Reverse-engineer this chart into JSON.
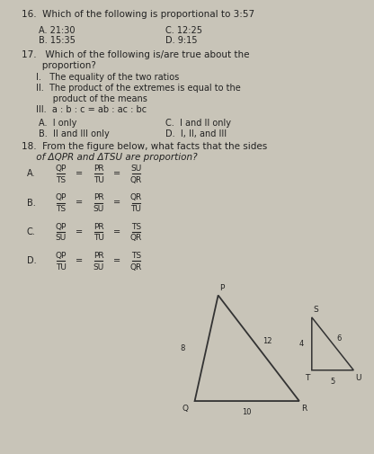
{
  "bg_color": "#c8c4b8",
  "paper_color": "#dddbd4",
  "text_color": "#222222",
  "q16_fracs": [
    [
      "QP",
      "TS",
      "PR",
      "TU",
      "SU",
      "QR"
    ],
    [
      "QP",
      "TS",
      "PR",
      "SU",
      "QR",
      "TU"
    ],
    [
      "QP",
      "SU",
      "PR",
      "TU",
      "TS",
      "QR"
    ],
    [
      "QP",
      "TU",
      "PR",
      "SU",
      "TS",
      "QR"
    ]
  ],
  "q18_labels": [
    "A.",
    "B.",
    "C.",
    "D."
  ]
}
